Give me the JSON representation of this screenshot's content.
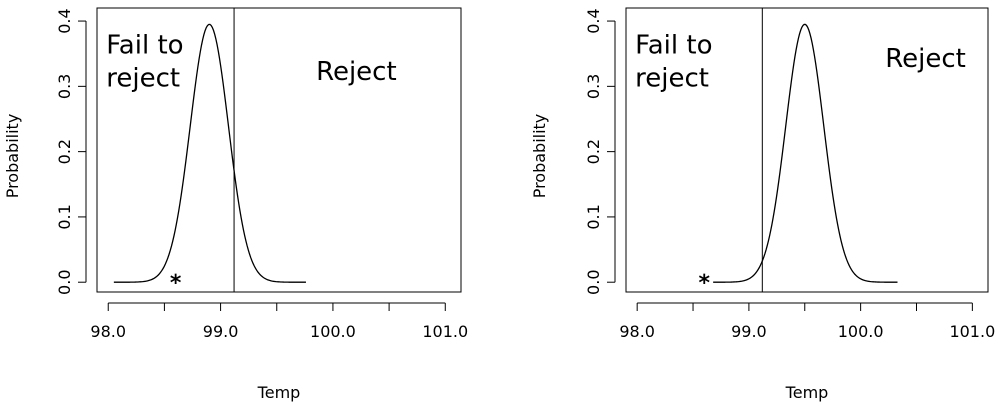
{
  "chart_data": [
    {
      "type": "line",
      "title": "",
      "xlabel": "Temp",
      "ylabel": "Probability",
      "xlim": [
        97.9,
        101.14
      ],
      "ylim": [
        -0.015,
        0.42
      ],
      "x_ticks": [
        98.0,
        98.5,
        99.0,
        99.5,
        100.0,
        100.5,
        101.0
      ],
      "x_tick_labels": [
        "98.0",
        "",
        "99.0",
        "",
        "100.0",
        "",
        "101.0"
      ],
      "y_ticks": [
        0.0,
        0.1,
        0.2,
        0.3,
        0.4
      ],
      "y_tick_labels": [
        "0.0",
        "0.1",
        "0.2",
        "0.3",
        "0.4"
      ],
      "grid": false,
      "series": [
        {
          "curve": "normal",
          "mean": 98.9,
          "sd": 0.17,
          "x_min": 98.05,
          "x_max": 99.76,
          "peak_prob": 0.395
        }
      ],
      "critical_value": 99.12,
      "observed_value": 98.6,
      "observed_marker": "*",
      "annotations": {
        "fail_line1": "Fail to",
        "fail_line2": "reject",
        "reject": "Reject"
      },
      "annotation_positions": {
        "fail": {
          "x": 98.0,
          "y": 0.35
        },
        "reject": {
          "x": 99.85,
          "y": 0.31
        }
      }
    },
    {
      "type": "line",
      "title": "",
      "xlabel": "Temp",
      "ylabel": "Probability",
      "xlim": [
        97.9,
        101.14
      ],
      "ylim": [
        -0.015,
        0.42
      ],
      "x_ticks": [
        98.0,
        98.5,
        99.0,
        99.5,
        100.0,
        100.5,
        101.0
      ],
      "x_tick_labels": [
        "98.0",
        "",
        "99.0",
        "",
        "100.0",
        "",
        "101.0"
      ],
      "y_ticks": [
        0.0,
        0.1,
        0.2,
        0.3,
        0.4
      ],
      "y_tick_labels": [
        "0.0",
        "0.1",
        "0.2",
        "0.3",
        "0.4"
      ],
      "grid": false,
      "series": [
        {
          "curve": "normal",
          "mean": 99.5,
          "sd": 0.17,
          "x_min": 98.68,
          "x_max": 100.33,
          "peak_prob": 0.395
        }
      ],
      "critical_value": 99.12,
      "observed_value": 98.6,
      "observed_marker": "*",
      "annotations": {
        "fail_line1": "Fail to",
        "fail_line2": "reject",
        "reject": "Reject"
      },
      "annotation_positions": {
        "fail": {
          "x": 98.0,
          "y": 0.35
        },
        "reject": {
          "x": 100.22,
          "y": 0.33
        }
      }
    }
  ]
}
